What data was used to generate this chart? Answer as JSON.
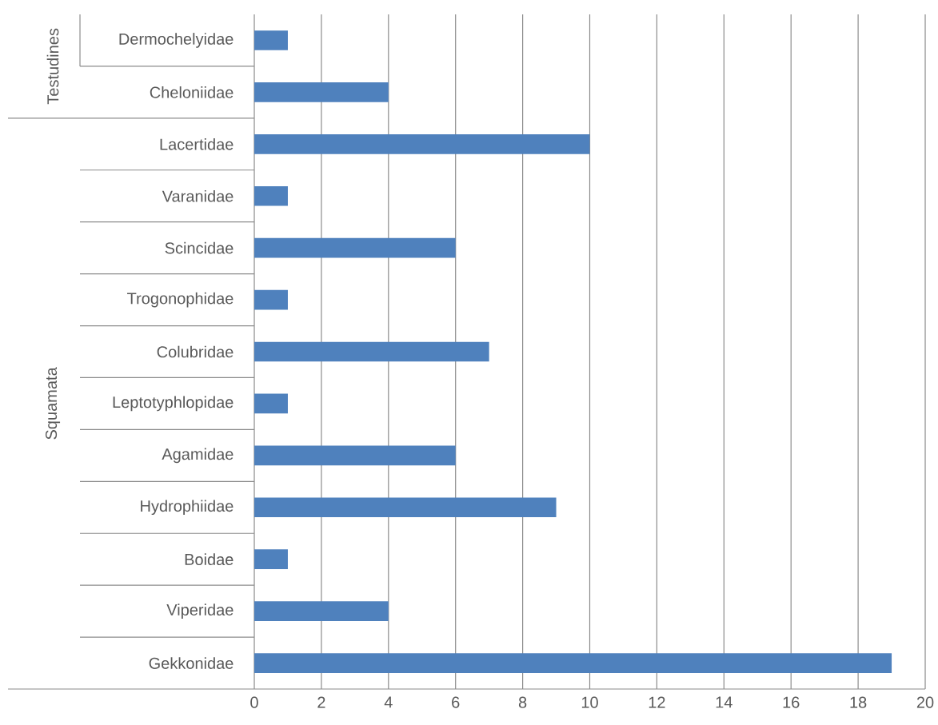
{
  "chart_data": {
    "type": "bar",
    "orientation": "horizontal",
    "categories": [
      "Dermochelyidae",
      "Cheloniidae",
      "Lacertidae",
      "Varanidae",
      "Scincidae",
      "Trogonophidae",
      "Colubridae",
      "Leptotyphlopidae",
      "Agamidae",
      "Hydrophiidae",
      "Boidae",
      "Viperidae",
      "Gekkonidae"
    ],
    "values": [
      1,
      4,
      10,
      1,
      6,
      1,
      7,
      1,
      6,
      9,
      1,
      4,
      19
    ],
    "color": "#4f81bd",
    "xlim": [
      0,
      20
    ],
    "xticks": [
      0,
      2,
      4,
      6,
      8,
      10,
      12,
      14,
      16,
      18,
      20
    ],
    "grid": "x",
    "annotations": [
      "Testudines",
      "Squamata"
    ]
  }
}
